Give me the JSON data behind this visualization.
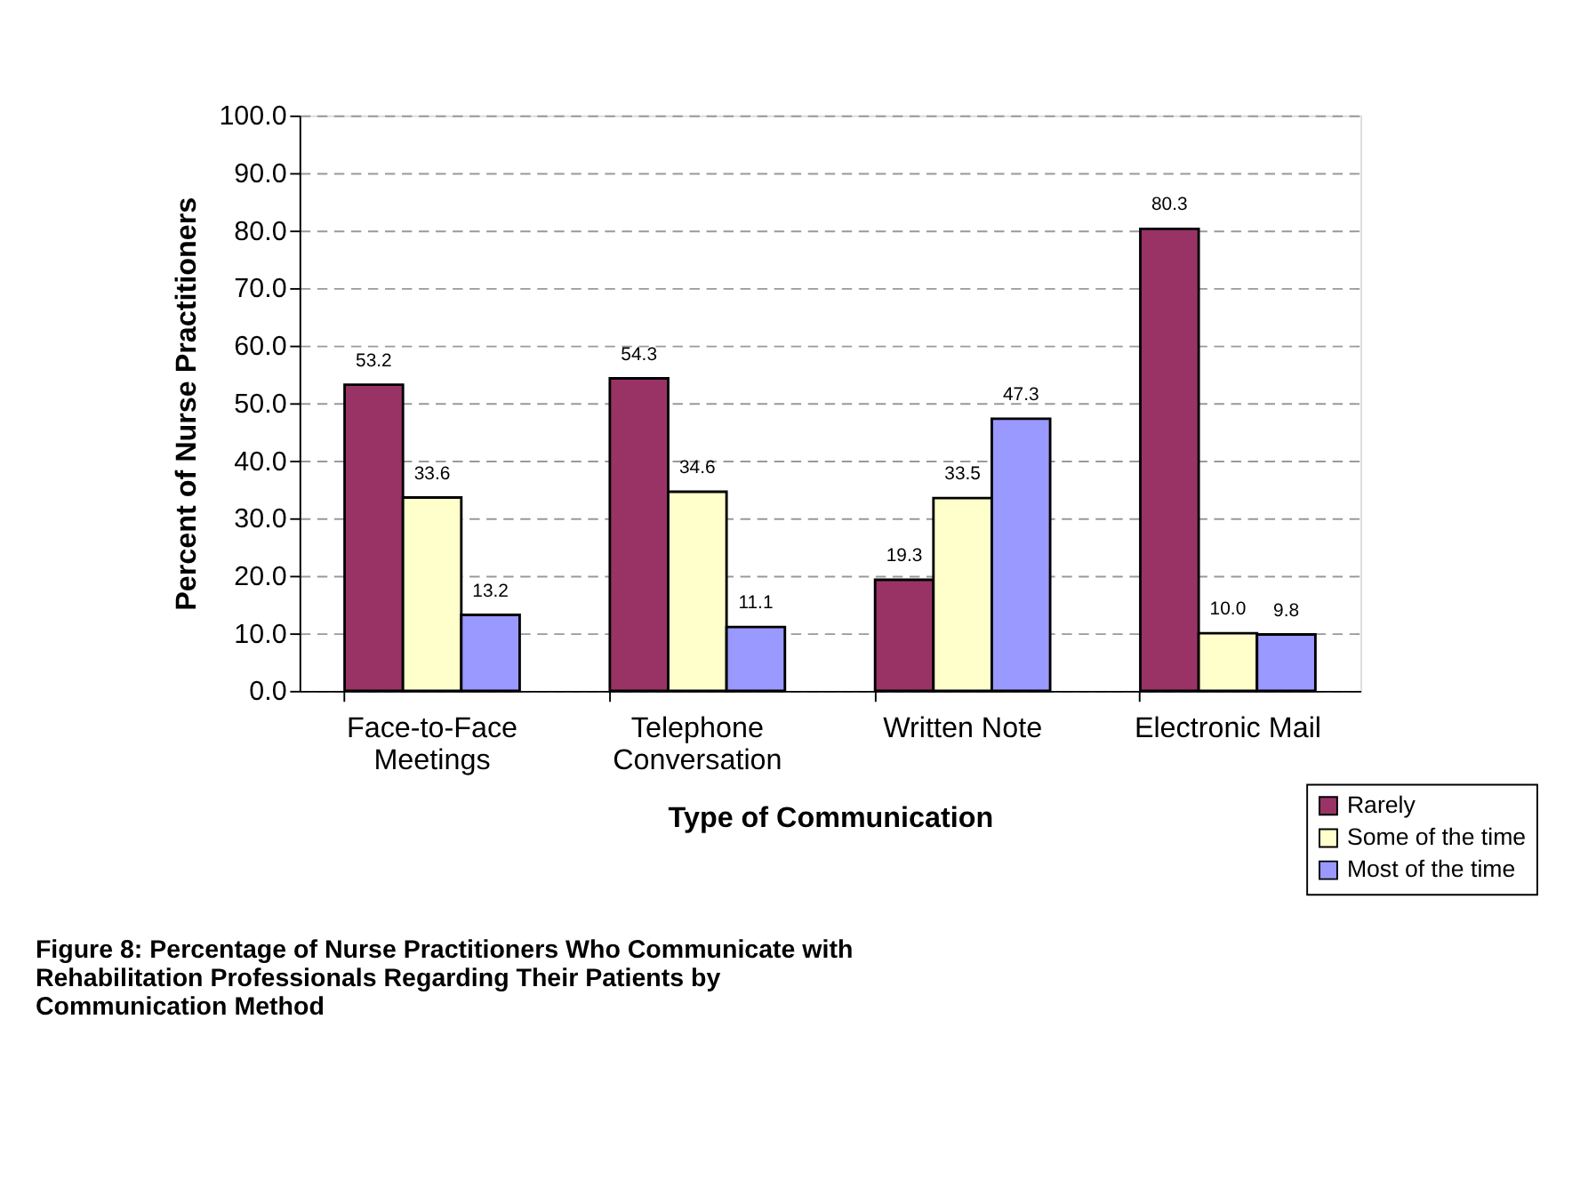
{
  "chart_data": {
    "type": "bar",
    "title": "Figure 8:  Percentage of Nurse Practitioners Who Communicate with\n               Rehabilitation Professionals Regarding Their Patients by\n               Communication Method",
    "xlabel": "Type of Communication",
    "ylabel": "Percent of Nurse Practitioners",
    "categories": [
      "Face-to-Face\nMeetings",
      "Telephone\nConversation",
      "Written Note",
      "Electronic Mail"
    ],
    "series": [
      {
        "name": "Rarely",
        "color": "#993366",
        "values": [
          53.2,
          54.3,
          19.3,
          80.3
        ],
        "value_labels": [
          "53.2",
          "54.3",
          "19.3",
          "80.3"
        ]
      },
      {
        "name": "Some of the time",
        "color": "#ffffcc",
        "values": [
          33.6,
          34.6,
          33.5,
          10.0
        ],
        "value_labels": [
          "33.6",
          "34.6",
          "33.5",
          "10.0"
        ]
      },
      {
        "name": "Most of the time",
        "color": "#9999ff",
        "values": [
          13.2,
          11.1,
          47.3,
          9.8
        ],
        "value_labels": [
          "13.2",
          "11.1",
          "47.3",
          "9.8"
        ]
      }
    ],
    "ylim": [
      0,
      100
    ],
    "yticks": [
      {
        "value": 0,
        "label": "0.0"
      },
      {
        "value": 10,
        "label": "10.0"
      },
      {
        "value": 20,
        "label": "20.0"
      },
      {
        "value": 30,
        "label": "30.0"
      },
      {
        "value": 40,
        "label": "40.0"
      },
      {
        "value": 50,
        "label": "50.0"
      },
      {
        "value": 60,
        "label": "60.0"
      },
      {
        "value": 70,
        "label": "70.0"
      },
      {
        "value": 80,
        "label": "80.0"
      },
      {
        "value": 90,
        "label": "90.0"
      },
      {
        "value": 100,
        "label": "100.0"
      }
    ],
    "grid": "y",
    "legend": "bottom right",
    "data_labels": true
  }
}
